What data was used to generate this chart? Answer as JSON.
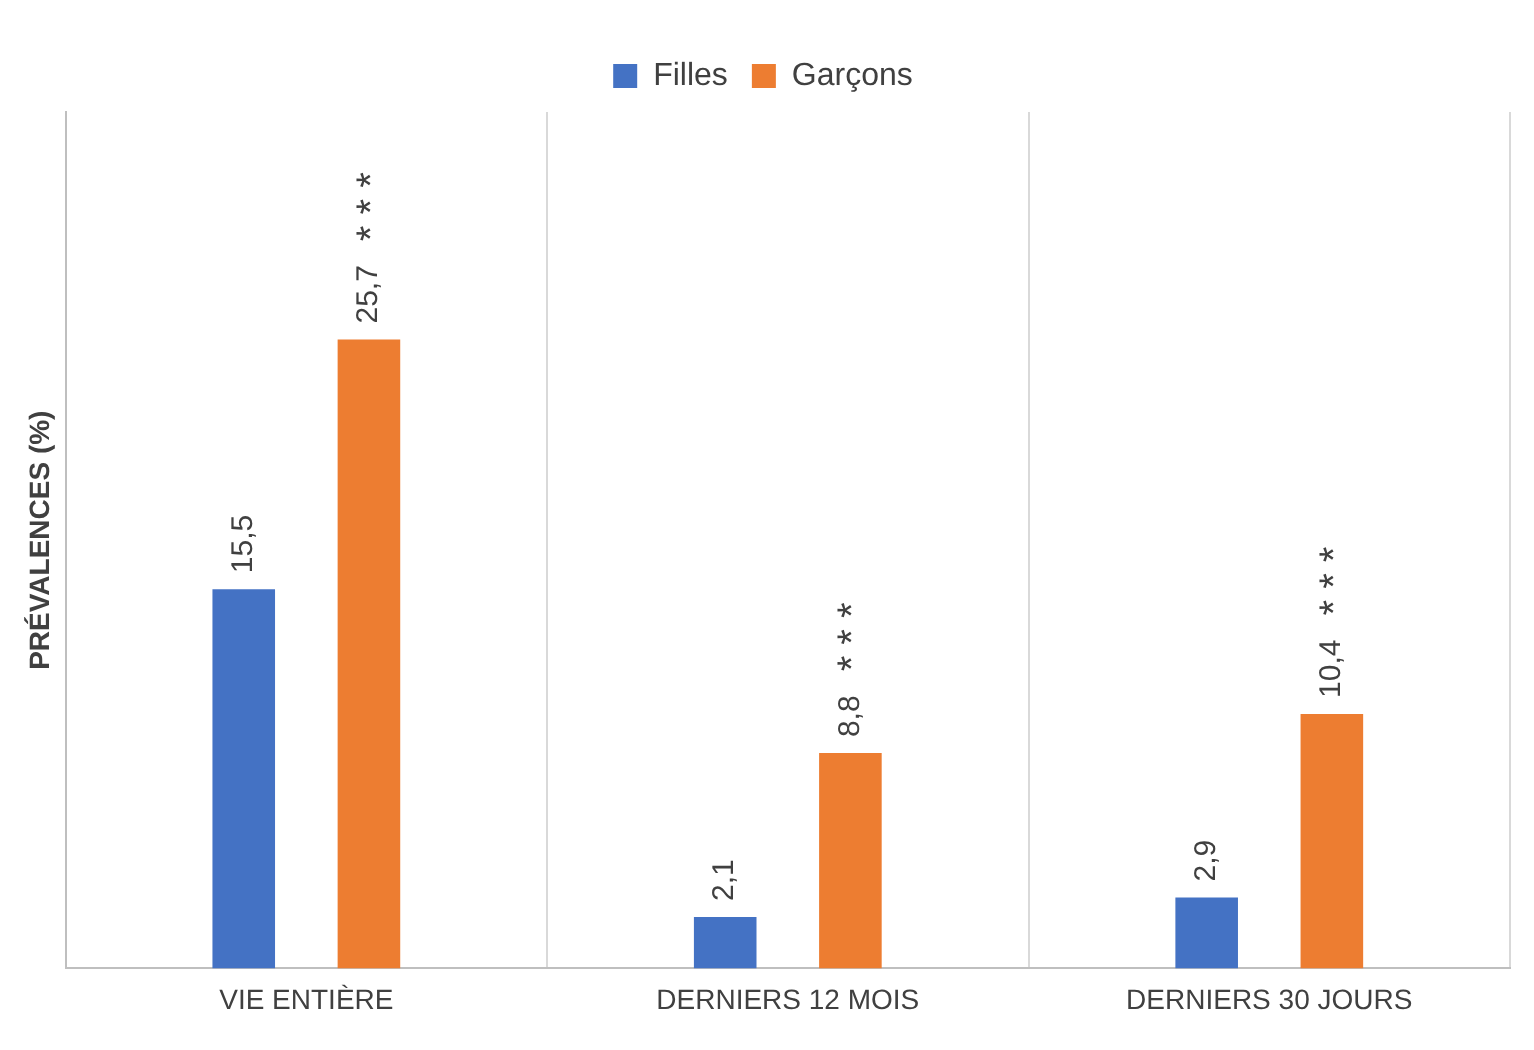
{
  "chart_data": {
    "type": "bar",
    "ylabel": "PRÉVALENCES (%)",
    "categories": [
      "VIE ENTIÈRE",
      "DERNIERS 12 MOIS",
      "DERNIERS 30 JOURS"
    ],
    "series": [
      {
        "name": "Filles",
        "color": "#4472c4",
        "values": [
          15.5,
          2.1,
          2.9
        ],
        "value_labels": [
          "15,5",
          "2,1",
          "2,9"
        ]
      },
      {
        "name": "Garçons",
        "color": "#ed7d31",
        "values": [
          25.7,
          8.8,
          10.4
        ],
        "value_labels": [
          "25,7",
          "8,8",
          "10,4"
        ]
      }
    ],
    "annotations": [
      "* * *",
      "* * *",
      "* * *"
    ],
    "grid": "x",
    "legend": "top"
  }
}
